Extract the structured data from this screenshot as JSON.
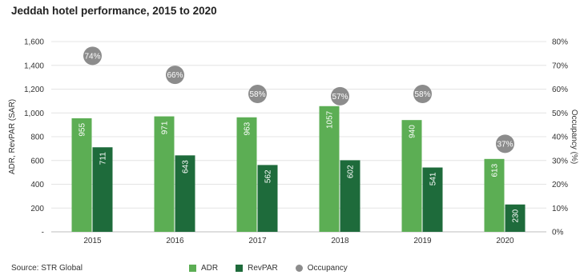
{
  "chart_data": {
    "type": "bar",
    "title": "Jeddah hotel performance, 2015 to 2020",
    "categories": [
      "2015",
      "2016",
      "2017",
      "2018",
      "2019",
      "2020"
    ],
    "series": [
      {
        "name": "ADR",
        "values": [
          955,
          971,
          963,
          1057,
          940,
          613
        ],
        "color": "#5cae54",
        "labels": [
          "955",
          "971",
          "963",
          "1057",
          "940",
          "613"
        ]
      },
      {
        "name": "RevPAR",
        "values": [
          711,
          643,
          562,
          602,
          541,
          230
        ],
        "color": "#1e6b3b",
        "labels": [
          "711",
          "643",
          "562",
          "602",
          "541",
          "230"
        ]
      }
    ],
    "occupancy": {
      "name": "Occupancy",
      "values": [
        74,
        66,
        58,
        57,
        58,
        37
      ],
      "labels": [
        "74%",
        "66%",
        "58%",
        "57%",
        "58%",
        "37%"
      ],
      "color": "#8c8c8c"
    },
    "ylabel": "ADR, RevPAR (SAR)",
    "ylim": [
      0,
      1600
    ],
    "y_ticks": [
      "-",
      "200",
      "400",
      "600",
      "800",
      "1,000",
      "1,200",
      "1,400",
      "1,600"
    ],
    "y2label": "Occupancy (%)",
    "y2lim": [
      0,
      80
    ],
    "y2_ticks": [
      "0%",
      "10%",
      "20%",
      "30%",
      "40%",
      "50%",
      "60%",
      "70%",
      "80%"
    ],
    "grid": true,
    "legend_position": "bottom"
  },
  "source": "Source: STR Global"
}
